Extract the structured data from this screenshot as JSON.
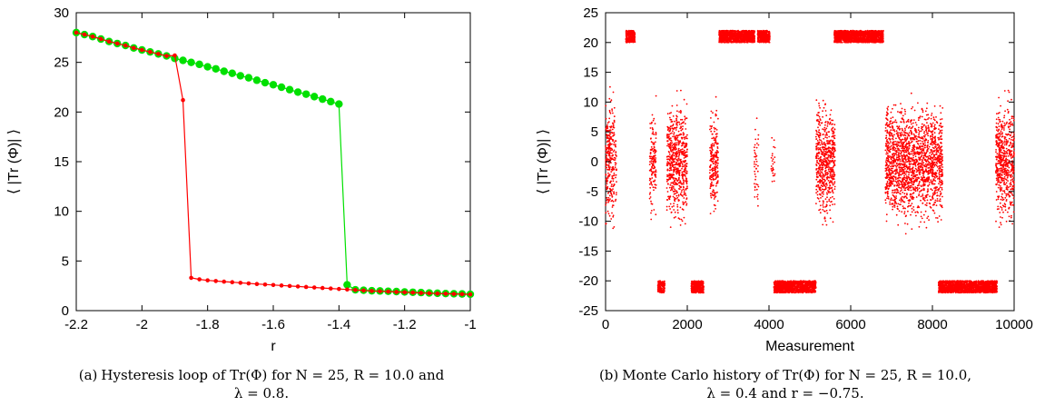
{
  "chart_data": [
    {
      "type": "line",
      "panel": "a",
      "xlabel": "r",
      "ylabel": "⟨ |Tr (Φ)| ⟩",
      "xlim": [
        -2.2,
        -1.0
      ],
      "ylim": [
        0,
        30
      ],
      "xticks": [
        "-2.2",
        "-2",
        "-1.8",
        "-1.6",
        "-1.4",
        "-1.2",
        "-1"
      ],
      "yticks": [
        "0",
        "5",
        "10",
        "15",
        "20",
        "25",
        "30"
      ],
      "grid": false,
      "series": [
        {
          "color": "#00e000",
          "marker": "large-dot",
          "x": [
            -2.2,
            -2.175,
            -2.15,
            -2.125,
            -2.1,
            -2.075,
            -2.05,
            -2.025,
            -2.0,
            -1.975,
            -1.95,
            -1.925,
            -1.9,
            -1.875,
            -1.85,
            -1.825,
            -1.8,
            -1.775,
            -1.75,
            -1.725,
            -1.7,
            -1.675,
            -1.65,
            -1.625,
            -1.6,
            -1.575,
            -1.55,
            -1.525,
            -1.5,
            -1.475,
            -1.45,
            -1.425,
            -1.4,
            -1.375,
            -1.35,
            -1.325,
            -1.3,
            -1.275,
            -1.25,
            -1.225,
            -1.2,
            -1.175,
            -1.15,
            -1.125,
            -1.1,
            -1.075,
            -1.05,
            -1.025,
            -1.0
          ],
          "y": [
            28.0,
            27.8,
            27.6,
            27.35,
            27.1,
            26.9,
            26.7,
            26.45,
            26.25,
            26.05,
            25.85,
            25.65,
            25.4,
            25.2,
            25.0,
            24.8,
            24.55,
            24.35,
            24.1,
            23.9,
            23.65,
            23.45,
            23.2,
            22.95,
            22.75,
            22.5,
            22.25,
            22.0,
            21.8,
            21.55,
            21.3,
            21.05,
            20.8,
            2.6,
            2.1,
            2.05,
            2.0,
            1.98,
            1.95,
            1.92,
            1.88,
            1.85,
            1.82,
            1.78,
            1.75,
            1.72,
            1.7,
            1.68,
            1.65
          ]
        },
        {
          "color": "#ff0000",
          "marker": "small-dot",
          "x": [
            -2.2,
            -2.175,
            -2.15,
            -2.125,
            -2.1,
            -2.075,
            -2.05,
            -2.025,
            -2.0,
            -1.975,
            -1.95,
            -1.925,
            -1.9,
            -1.875,
            -1.85,
            -1.825,
            -1.8,
            -1.775,
            -1.75,
            -1.725,
            -1.7,
            -1.675,
            -1.65,
            -1.625,
            -1.6,
            -1.575,
            -1.55,
            -1.525,
            -1.5,
            -1.475,
            -1.45,
            -1.425,
            -1.4,
            -1.375,
            -1.35,
            -1.325,
            -1.3,
            -1.275,
            -1.25,
            -1.225,
            -1.2,
            -1.175,
            -1.15,
            -1.125,
            -1.1,
            -1.075,
            -1.05,
            -1.025,
            -1.0
          ],
          "y": [
            28.0,
            27.8,
            27.6,
            27.35,
            27.1,
            26.9,
            26.7,
            26.45,
            26.25,
            26.05,
            25.85,
            25.65,
            25.7,
            21.2,
            3.3,
            3.15,
            3.05,
            2.98,
            2.92,
            2.86,
            2.8,
            2.74,
            2.68,
            2.63,
            2.58,
            2.53,
            2.48,
            2.43,
            2.38,
            2.33,
            2.28,
            2.23,
            2.18,
            2.13,
            2.08,
            2.03,
            1.98,
            1.95,
            1.92,
            1.88,
            1.85,
            1.82,
            1.78,
            1.75,
            1.72,
            1.7,
            1.68,
            1.66,
            1.64
          ]
        }
      ]
    },
    {
      "type": "scatter",
      "panel": "b",
      "xlabel": "Measurement",
      "ylabel": "⟨ |Tr (Φ)| ⟩",
      "xlim": [
        0,
        10000
      ],
      "ylim": [
        -25,
        25
      ],
      "xticks": [
        "0",
        "2000",
        "4000",
        "6000",
        "8000",
        "10000"
      ],
      "yticks": [
        "25",
        "20",
        "15",
        "10",
        "5",
        "0",
        "-5",
        "-10",
        "-15",
        "-20",
        "-25"
      ],
      "grid": false,
      "color": "#ff0000",
      "clusters": [
        {
          "x": [
            0,
            220
          ],
          "y": 0,
          "spread": 11,
          "density": 1.0
        },
        {
          "x": [
            230,
            270
          ],
          "y": 0,
          "spread": 9,
          "density": 0.5
        },
        {
          "x": [
            500,
            720
          ],
          "y": 21,
          "spread": 1.0,
          "density": 1.0
        },
        {
          "x": [
            1080,
            1240
          ],
          "y": 0,
          "spread": 9,
          "density": 0.7
        },
        {
          "x": [
            1280,
            1450
          ],
          "y": -21,
          "spread": 1.0,
          "density": 0.8
        },
        {
          "x": [
            1500,
            2000
          ],
          "y": 0,
          "spread": 10,
          "density": 1.0
        },
        {
          "x": [
            2100,
            2400
          ],
          "y": -21,
          "spread": 1.0,
          "density": 1.0
        },
        {
          "x": [
            2550,
            2760
          ],
          "y": 0,
          "spread": 9,
          "density": 0.8
        },
        {
          "x": [
            2780,
            3650
          ],
          "y": 21,
          "spread": 1.0,
          "density": 1.0
        },
        {
          "x": [
            3640,
            3750
          ],
          "y": 0,
          "spread": 8,
          "density": 0.3
        },
        {
          "x": [
            3720,
            4020
          ],
          "y": 21,
          "spread": 1.0,
          "density": 1.0
        },
        {
          "x": [
            4050,
            4150
          ],
          "y": 0,
          "spread": 5,
          "density": 0.2
        },
        {
          "x": [
            4120,
            5150
          ],
          "y": -21,
          "spread": 1.0,
          "density": 1.0
        },
        {
          "x": [
            5150,
            5620
          ],
          "y": 0,
          "spread": 10,
          "density": 1.0
        },
        {
          "x": [
            5600,
            6800
          ],
          "y": 21,
          "spread": 1.0,
          "density": 1.0
        },
        {
          "x": [
            6850,
            8250
          ],
          "y": 0,
          "spread": 10,
          "density": 1.0
        },
        {
          "x": [
            8150,
            9580
          ],
          "y": -21,
          "spread": 1.0,
          "density": 1.0
        },
        {
          "x": [
            9550,
            10000
          ],
          "y": 0,
          "spread": 10,
          "density": 1.0
        }
      ]
    }
  ],
  "captions": [
    {
      "tag": "(a)",
      "line1": "Hysteresis loop of Tr(Φ) for N = 25, R = 10.0 and",
      "line2": "λ = 0.8."
    },
    {
      "tag": "(b)",
      "line1": "Monte Carlo history of Tr(Φ) for N = 25, R = 10.0,",
      "line2": "λ = 0.4 and r = −0.75."
    }
  ]
}
